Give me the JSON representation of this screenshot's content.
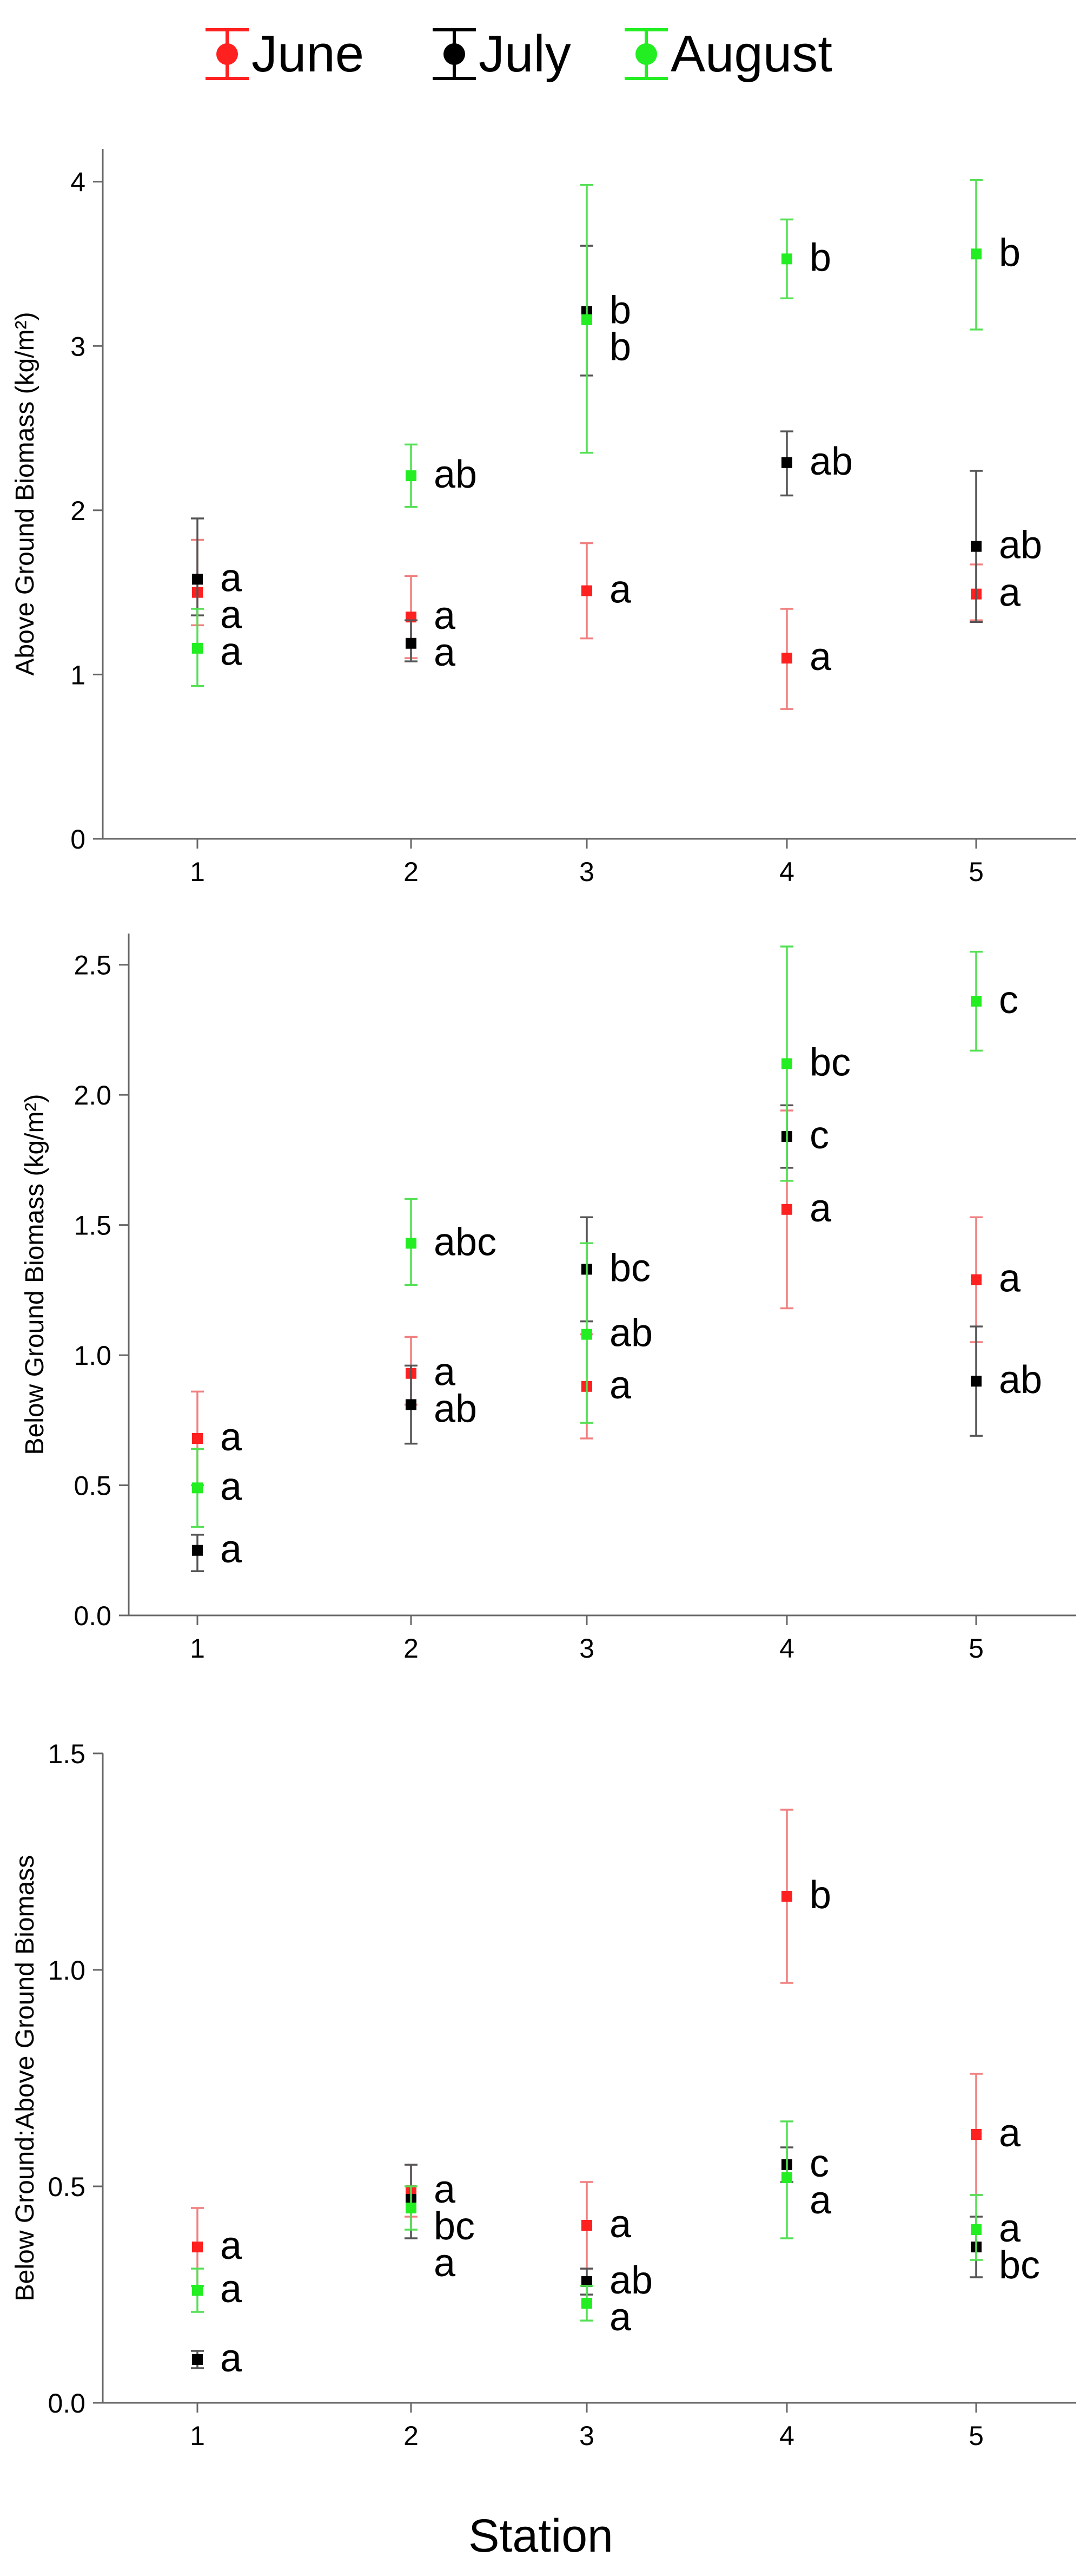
{
  "legend": {
    "entries": [
      {
        "name": "June",
        "color": "#ff2020"
      },
      {
        "name": "July",
        "color": "#000000"
      },
      {
        "name": "August",
        "color": "#22ee22"
      }
    ]
  },
  "x_axis": {
    "label": "Station"
  },
  "colors": {
    "June": "#ff2020",
    "July": "#000000",
    "August": "#22ee22",
    "June_bar": "#f08080",
    "July_bar": "#555555",
    "August_bar": "#55e055"
  },
  "chart_data": [
    {
      "type": "scatter",
      "title": "",
      "xlabel": "Station",
      "ylabel": "Above Ground Biomass (kg/m²)",
      "categories": [
        "1",
        "2",
        "3",
        "4",
        "5"
      ],
      "ylim": [
        0,
        4.2
      ],
      "yticks": [
        "0",
        "1",
        "2",
        "3",
        "4"
      ],
      "series": [
        {
          "name": "June",
          "values": [
            1.5,
            1.35,
            1.51,
            1.1,
            1.49
          ],
          "err_low": [
            1.3,
            1.1,
            1.22,
            0.79,
            1.33
          ],
          "err_high": [
            1.82,
            1.6,
            1.8,
            1.4,
            1.67
          ],
          "letters": [
            "a",
            "a",
            "a",
            "a",
            "a"
          ]
        },
        {
          "name": "July",
          "values": [
            1.58,
            1.19,
            3.21,
            2.29,
            1.78
          ],
          "err_low": [
            1.36,
            1.08,
            2.82,
            2.09,
            1.32
          ],
          "err_high": [
            1.95,
            1.33,
            3.61,
            2.48,
            2.24
          ],
          "letters": [
            "a",
            "a",
            "b",
            "ab",
            "ab"
          ]
        },
        {
          "name": "August",
          "values": [
            1.16,
            2.21,
            3.16,
            3.53,
            3.56
          ],
          "err_low": [
            0.93,
            2.02,
            2.35,
            3.29,
            3.1
          ],
          "err_high": [
            1.4,
            2.4,
            3.98,
            3.77,
            4.01
          ],
          "letters": [
            "a",
            "ab",
            "b",
            "b",
            "b"
          ]
        }
      ]
    },
    {
      "type": "scatter",
      "title": "",
      "xlabel": "Station",
      "ylabel": "Below Ground Biomass (kg/m²)",
      "categories": [
        "1",
        "2",
        "3",
        "4",
        "5"
      ],
      "ylim": [
        0,
        2.62
      ],
      "yticks": [
        "0.0",
        "0.5",
        "1.0",
        "1.5",
        "2.0",
        "2.5"
      ],
      "series": [
        {
          "name": "June",
          "values": [
            0.68,
            0.93,
            0.88,
            1.56,
            1.29
          ],
          "err_low": [
            0.5,
            0.81,
            0.68,
            1.18,
            1.05
          ],
          "err_high": [
            0.86,
            1.07,
            1.08,
            1.94,
            1.53
          ],
          "letters": [
            "a",
            "a",
            "a",
            "a",
            "a"
          ]
        },
        {
          "name": "July",
          "values": [
            0.25,
            0.81,
            1.33,
            1.84,
            0.9
          ],
          "err_low": [
            0.17,
            0.66,
            1.13,
            1.72,
            0.69
          ],
          "err_high": [
            0.31,
            0.96,
            1.53,
            1.96,
            1.11
          ],
          "letters": [
            "a",
            "ab",
            "bc",
            "c",
            "ab"
          ]
        },
        {
          "name": "August",
          "values": [
            0.49,
            1.43,
            1.08,
            2.12,
            2.36
          ],
          "err_low": [
            0.34,
            1.27,
            0.74,
            1.67,
            2.17
          ],
          "err_high": [
            0.64,
            1.6,
            1.43,
            2.57,
            2.55
          ],
          "letters": [
            "a",
            "abc",
            "ab",
            "bc",
            "c"
          ]
        }
      ]
    },
    {
      "type": "scatter",
      "title": "",
      "xlabel": "Station",
      "ylabel": "Below Ground:Above Ground Biomass",
      "categories": [
        "1",
        "2",
        "3",
        "4",
        "5"
      ],
      "ylim": [
        0,
        1.5
      ],
      "yticks": [
        "0.0",
        "0.5",
        "1.0",
        "1.5"
      ],
      "series": [
        {
          "name": "June",
          "values": [
            0.36,
            0.49,
            0.41,
            1.17,
            0.62
          ],
          "err_low": [
            0.27,
            0.43,
            0.31,
            0.97,
            0.48
          ],
          "err_high": [
            0.45,
            0.55,
            0.51,
            1.37,
            0.76
          ],
          "letters": [
            "a",
            "a",
            "a",
            "b",
            "a"
          ]
        },
        {
          "name": "July",
          "values": [
            0.1,
            0.47,
            0.28,
            0.55,
            0.36
          ],
          "err_low": [
            0.08,
            0.38,
            0.25,
            0.51,
            0.29
          ],
          "err_high": [
            0.12,
            0.55,
            0.31,
            0.59,
            0.43
          ],
          "letters": [
            "a",
            "bc",
            "ab",
            "c",
            "bc"
          ]
        },
        {
          "name": "August",
          "values": [
            0.26,
            0.45,
            0.23,
            0.52,
            0.4
          ],
          "err_low": [
            0.21,
            0.4,
            0.19,
            0.38,
            0.33
          ],
          "err_high": [
            0.31,
            0.5,
            0.27,
            0.65,
            0.48
          ],
          "letters": [
            "a",
            "a",
            "a",
            "a",
            "a"
          ]
        }
      ]
    }
  ]
}
